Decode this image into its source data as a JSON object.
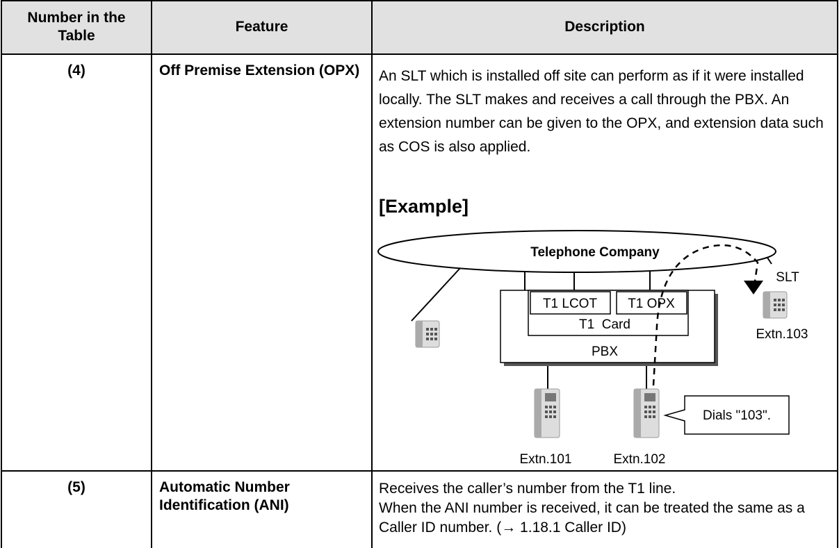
{
  "header": {
    "columns": [
      "Number in the Table",
      "Feature",
      "Description"
    ]
  },
  "rows": [
    {
      "number": "(4)",
      "feature": "Off Premise Extension (OPX)",
      "description": [
        "An SLT which is installed off site can perform as if it were installed locally. The SLT makes and receives a call through the PBX. An extension number can be given to the OPX, and extension data such as COS is also applied."
      ],
      "example": {
        "heading": "[Example]",
        "diagram": {
          "network": "Telephone Company",
          "card_ports": [
            "T1 LCOT",
            "T1 OPX"
          ],
          "card": "T1  Card",
          "pbx": "PBX",
          "remote_label": "SLT",
          "remote_extension": "Extn.103",
          "extensions": [
            "Extn.101",
            "Extn.102"
          ],
          "callout": "Dials \"103\"."
        }
      }
    },
    {
      "number": "(5)",
      "feature": "Automatic Number Identification (ANI)",
      "description": [
        "Receives the caller’s number from the T1 line.",
        "When the ANI number is received, it can be treated the same as a Caller ID number. (→ 1.18.1  Caller ID)"
      ]
    }
  ]
}
